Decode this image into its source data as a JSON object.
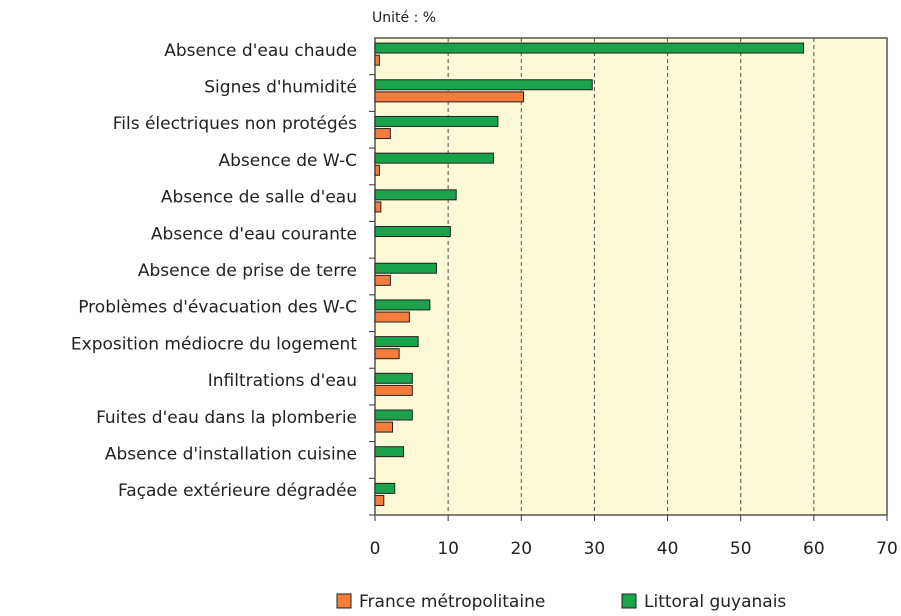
{
  "chart_data": {
    "type": "hbar",
    "subtitle": "Unité : %",
    "categories": [
      "Absence d'eau chaude",
      "Signes d'humidité",
      "Fils électriques non protégés",
      "Absence de W-C",
      "Absence de salle d'eau",
      "Absence d'eau courante",
      "Absence de prise de terre",
      "Problèmes d'évacuation des W-C",
      "Exposition médiocre du logement",
      "Infiltrations d'eau",
      "Fuites d'eau dans la plomberie",
      "Absence d'installation cuisine",
      "Façade extérieure dégradée"
    ],
    "series": [
      {
        "name": "France métropolitaine",
        "color": "#f47c3c",
        "values": [
          0.6,
          20.3,
          2.1,
          0.6,
          0.8,
          0,
          2.1,
          4.7,
          3.3,
          5.1,
          2.4,
          0,
          1.2
        ]
      },
      {
        "name": "Littoral guyanais",
        "color": "#1aa34a",
        "values": [
          58.6,
          29.7,
          16.8,
          16.2,
          11.1,
          10.3,
          8.4,
          7.5,
          5.9,
          5.1,
          5.1,
          3.9,
          2.7
        ]
      }
    ],
    "xlim": [
      0,
      70
    ],
    "xticks": [
      0,
      10,
      20,
      30,
      40,
      50,
      60,
      70
    ],
    "grid": true
  }
}
